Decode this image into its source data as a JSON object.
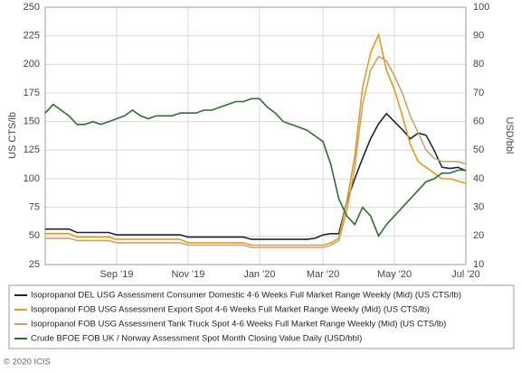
{
  "chart_data": {
    "type": "line",
    "y_label": "US CTS/lb",
    "y2_label": "USD/bbl",
    "footer": "© 2020 ICIS",
    "grid": true,
    "categories": [
      null,
      null,
      null,
      null,
      null,
      null,
      null,
      null,
      null,
      "Sep '19",
      null,
      null,
      null,
      null,
      null,
      null,
      null,
      null,
      "Nov '19",
      null,
      null,
      null,
      null,
      null,
      null,
      null,
      null,
      "Jan '20",
      null,
      null,
      null,
      null,
      null,
      null,
      null,
      "Mar '20",
      null,
      null,
      null,
      null,
      null,
      null,
      null,
      null,
      "May '20",
      null,
      null,
      null,
      null,
      null,
      null,
      null,
      null,
      "Jul '20"
    ],
    "ylim": [
      25,
      250
    ],
    "yticks": [
      25,
      50,
      75,
      100,
      125,
      150,
      175,
      200,
      225,
      250
    ],
    "y2lim": [
      10,
      100
    ],
    "y2ticks": [
      10,
      20,
      30,
      40,
      50,
      60,
      70,
      80,
      90,
      100
    ],
    "series": [
      {
        "name": "Isopropanol DEL USG Assessment Consumer Domestic 4-6 Weeks Full Market Range Weekly (Mid) (US CTS/lb)",
        "color": "#1c2633",
        "values": [
          56,
          56,
          56,
          56,
          53,
          53,
          53,
          53,
          53,
          51,
          51,
          51,
          51,
          51,
          51,
          51,
          51,
          51,
          49,
          49,
          49,
          49,
          49,
          49,
          49,
          49,
          47,
          47,
          47,
          47,
          47,
          47,
          47,
          47,
          48,
          51,
          52,
          52,
          80,
          100,
          118,
          135,
          148,
          157,
          150,
          143,
          135,
          140,
          138,
          125,
          110,
          109,
          110,
          107
        ]
      },
      {
        "name": "Isopropanol FOB USG Assessment Export Spot 4-6 Weeks Full Market Range Weekly (Mid) (US CTS/lb)",
        "color": "#e39b1b",
        "values": [
          52,
          52,
          52,
          52,
          49,
          49,
          49,
          49,
          49,
          47,
          47,
          47,
          47,
          47,
          47,
          47,
          47,
          47,
          44,
          44,
          44,
          44,
          44,
          44,
          44,
          44,
          42,
          42,
          42,
          42,
          42,
          42,
          42,
          42,
          42,
          42,
          44,
          48,
          80,
          120,
          180,
          210,
          226,
          195,
          178,
          155,
          130,
          115,
          110,
          105,
          100,
          100,
          98,
          96
        ]
      },
      {
        "name": "Isopropanol FOB USG Assessment Tank Truck Spot 4-6 Weeks Full Market Range Weekly (Mid) (US CTS/lb)",
        "color": "#c9a46a",
        "values": [
          48,
          48,
          48,
          48,
          46,
          46,
          46,
          46,
          46,
          44,
          44,
          44,
          44,
          44,
          44,
          44,
          44,
          44,
          42,
          42,
          42,
          42,
          42,
          42,
          42,
          42,
          40,
          40,
          40,
          40,
          40,
          40,
          40,
          40,
          40,
          40,
          42,
          46,
          72,
          110,
          165,
          195,
          207,
          203,
          190,
          175,
          155,
          140,
          125,
          118,
          115,
          115,
          115,
          113
        ]
      },
      {
        "name": "Crude BFOE FOB UK / Norway Assessment Spot Month Closing Value Daily (USD/bbl)",
        "color": "#2f6e2f",
        "axis": "y2",
        "values": [
          63,
          66,
          64,
          62,
          59,
          59,
          60,
          59,
          60,
          61,
          62,
          64,
          62,
          61,
          62,
          62,
          62,
          63,
          63,
          63,
          64,
          64,
          65,
          66,
          67,
          67,
          68,
          68,
          65,
          63,
          60,
          59,
          58,
          57,
          55,
          53,
          45,
          33,
          27,
          24,
          30,
          27,
          20,
          24,
          27,
          30,
          33,
          36,
          39,
          40,
          42,
          42,
          43,
          43
        ]
      }
    ]
  }
}
